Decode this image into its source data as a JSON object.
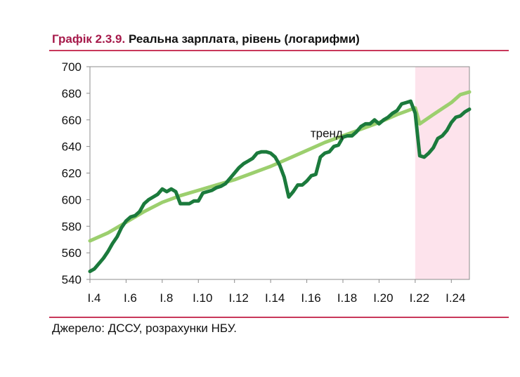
{
  "header": {
    "number": "Графік 2.3.9.",
    "title": "Реальна зарплата, рівень (логарифми)"
  },
  "footer": {
    "source": "Джерело: ДССУ, розрахунки НБУ."
  },
  "colors": {
    "accent": "#a6194a",
    "rule": "#c8385a",
    "actual": "#1b7a3c",
    "trend": "#9ccf6e",
    "shade": "#fde3ec"
  },
  "chart_data": {
    "type": "line",
    "title": "Реальна зарплата, рівень (логарифми)",
    "xlabel": "",
    "ylabel": "",
    "ylim": [
      540,
      700
    ],
    "xlim": [
      4,
      25
    ],
    "yticks": [
      540,
      560,
      580,
      600,
      620,
      640,
      660,
      680,
      700
    ],
    "xticks": [
      {
        "value": 4,
        "label": "I.4"
      },
      {
        "value": 6,
        "label": "I.6"
      },
      {
        "value": 8,
        "label": "I.8"
      },
      {
        "value": 10,
        "label": "I.10"
      },
      {
        "value": 12,
        "label": "I.12"
      },
      {
        "value": 14,
        "label": "I.14"
      },
      {
        "value": 16,
        "label": "I.16"
      },
      {
        "value": 18,
        "label": "I.18"
      },
      {
        "value": 20,
        "label": "I.20"
      },
      {
        "value": 22,
        "label": "I.22"
      },
      {
        "value": 24,
        "label": "I.24"
      }
    ],
    "shaded_period": [
      22,
      25
    ],
    "annotation": {
      "text": "тренд",
      "x": 17.1,
      "y": 647
    },
    "series": [
      {
        "name": "Реальна зарплата",
        "color": "#1b7a3c",
        "x": [
          4.0,
          4.25,
          4.5,
          4.75,
          5.0,
          5.25,
          5.5,
          5.75,
          6.0,
          6.25,
          6.5,
          6.75,
          7.0,
          7.25,
          7.5,
          7.75,
          8.0,
          8.25,
          8.5,
          8.75,
          9.0,
          9.25,
          9.5,
          9.75,
          10.0,
          10.25,
          10.5,
          10.75,
          11.0,
          11.25,
          11.5,
          11.75,
          12.0,
          12.25,
          12.5,
          12.75,
          13.0,
          13.25,
          13.5,
          13.75,
          14.0,
          14.25,
          14.5,
          14.75,
          15.0,
          15.25,
          15.5,
          15.75,
          16.0,
          16.25,
          16.5,
          16.75,
          17.0,
          17.25,
          17.5,
          17.75,
          18.0,
          18.25,
          18.5,
          18.75,
          19.0,
          19.25,
          19.5,
          19.75,
          20.0,
          20.25,
          20.5,
          20.75,
          21.0,
          21.25,
          21.5,
          21.75,
          22.0,
          22.25,
          22.5,
          22.75,
          23.0,
          23.25,
          23.5,
          23.75,
          24.0,
          24.25,
          24.5,
          24.75,
          25.0
        ],
        "values": [
          546,
          548,
          552,
          556,
          561,
          567,
          572,
          579,
          584,
          587,
          588,
          591,
          597,
          600,
          602,
          604,
          608,
          606,
          608,
          606,
          597,
          597,
          597,
          599,
          599,
          605,
          606,
          607,
          609,
          610,
          612,
          616,
          620,
          624,
          627,
          629,
          631,
          635,
          636,
          636,
          635,
          632,
          626,
          617,
          602,
          606,
          611,
          611,
          614,
          618,
          619,
          632,
          635,
          636,
          640,
          641,
          647,
          648,
          648,
          651,
          655,
          657,
          657,
          660,
          657,
          660,
          662,
          665,
          667,
          672,
          673,
          674,
          665,
          633,
          632,
          635,
          639,
          646,
          648,
          652,
          658,
          662,
          663,
          666,
          668
        ]
      },
      {
        "name": "тренд",
        "color": "#9ccf6e",
        "x": [
          4.0,
          5.0,
          6.0,
          7.0,
          8.0,
          9.0,
          10.0,
          11.0,
          12.0,
          13.0,
          14.0,
          15.0,
          16.0,
          17.0,
          18.0,
          19.0,
          20.0,
          21.0,
          22.0,
          22.25,
          23.0,
          24.0,
          24.5,
          25.0
        ],
        "values": [
          569,
          575,
          583,
          591,
          598,
          603,
          607,
          611,
          615,
          620,
          625,
          631,
          637,
          643,
          648,
          653,
          658,
          664,
          669,
          657,
          664,
          673,
          679,
          681
        ]
      }
    ]
  }
}
